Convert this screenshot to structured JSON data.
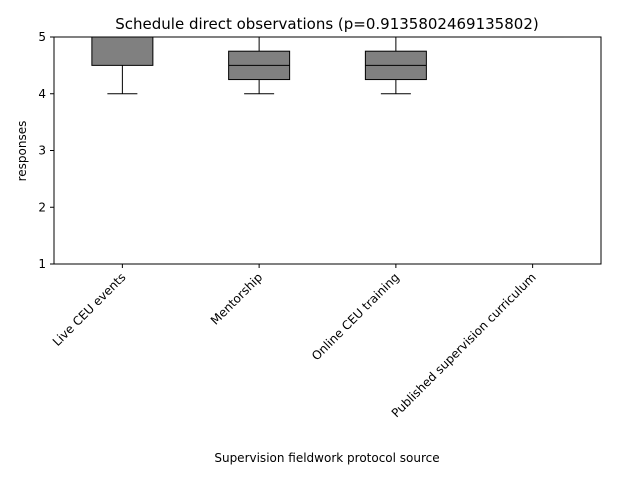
{
  "chart_data": {
    "type": "box",
    "title": "Schedule direct observations (p=0.9135802469135802)",
    "xlabel": "Supervision fieldwork protocol source",
    "ylabel": "responses",
    "ylim": [
      1,
      5
    ],
    "yticks": [
      "1",
      "2",
      "3",
      "4",
      "5"
    ],
    "grid": false,
    "categories": [
      "Live CEU events",
      "Mentorship",
      "Online CEU training",
      "Published supervision curriculum"
    ],
    "boxes": [
      {
        "whisker_low": 4,
        "q1": 4.5,
        "median": 5,
        "q3": 5,
        "whisker_high": 5
      },
      {
        "whisker_low": 4,
        "q1": 4.25,
        "median": 4.5,
        "q3": 4.75,
        "whisker_high": 5
      },
      {
        "whisker_low": 4,
        "q1": 4.25,
        "median": 4.5,
        "q3": 4.75,
        "whisker_high": 5
      },
      {
        "whisker_low": 5,
        "q1": 5,
        "median": 5,
        "q3": 5,
        "whisker_high": 5
      }
    ],
    "box_color": "#808080"
  }
}
